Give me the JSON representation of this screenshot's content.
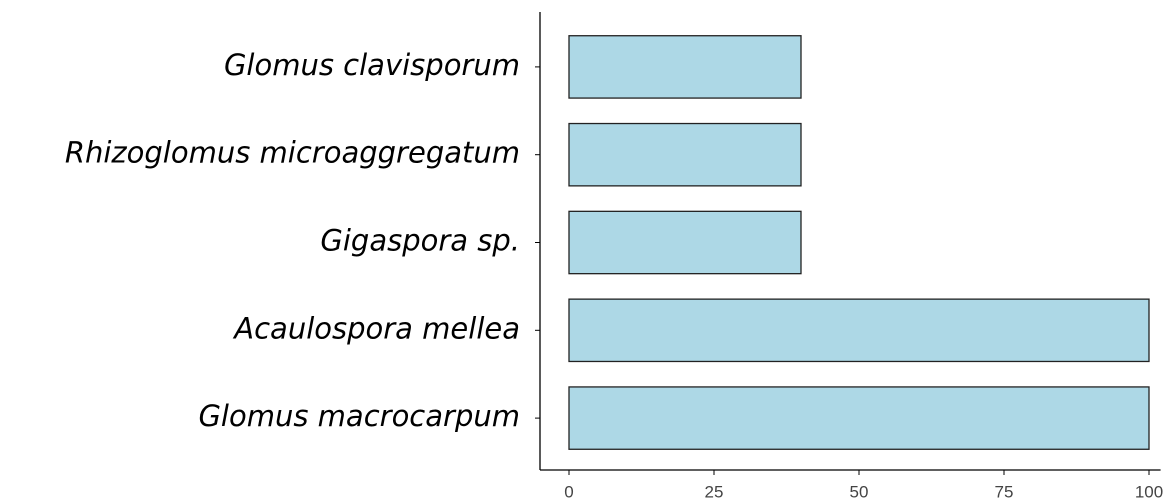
{
  "chart_data": {
    "type": "bar",
    "orientation": "horizontal",
    "categories": [
      "Glomus clavisporum",
      "Rhizoglomus microaggregatum",
      "Gigaspora sp.",
      "Acaulospora mellea",
      "Glomus macrocarpum"
    ],
    "values": [
      40,
      40,
      40,
      100,
      100
    ],
    "color": "#add8e6",
    "xlim": [
      -5,
      102
    ],
    "xticks": [
      0,
      25,
      50,
      75,
      100
    ],
    "grid": false
  }
}
